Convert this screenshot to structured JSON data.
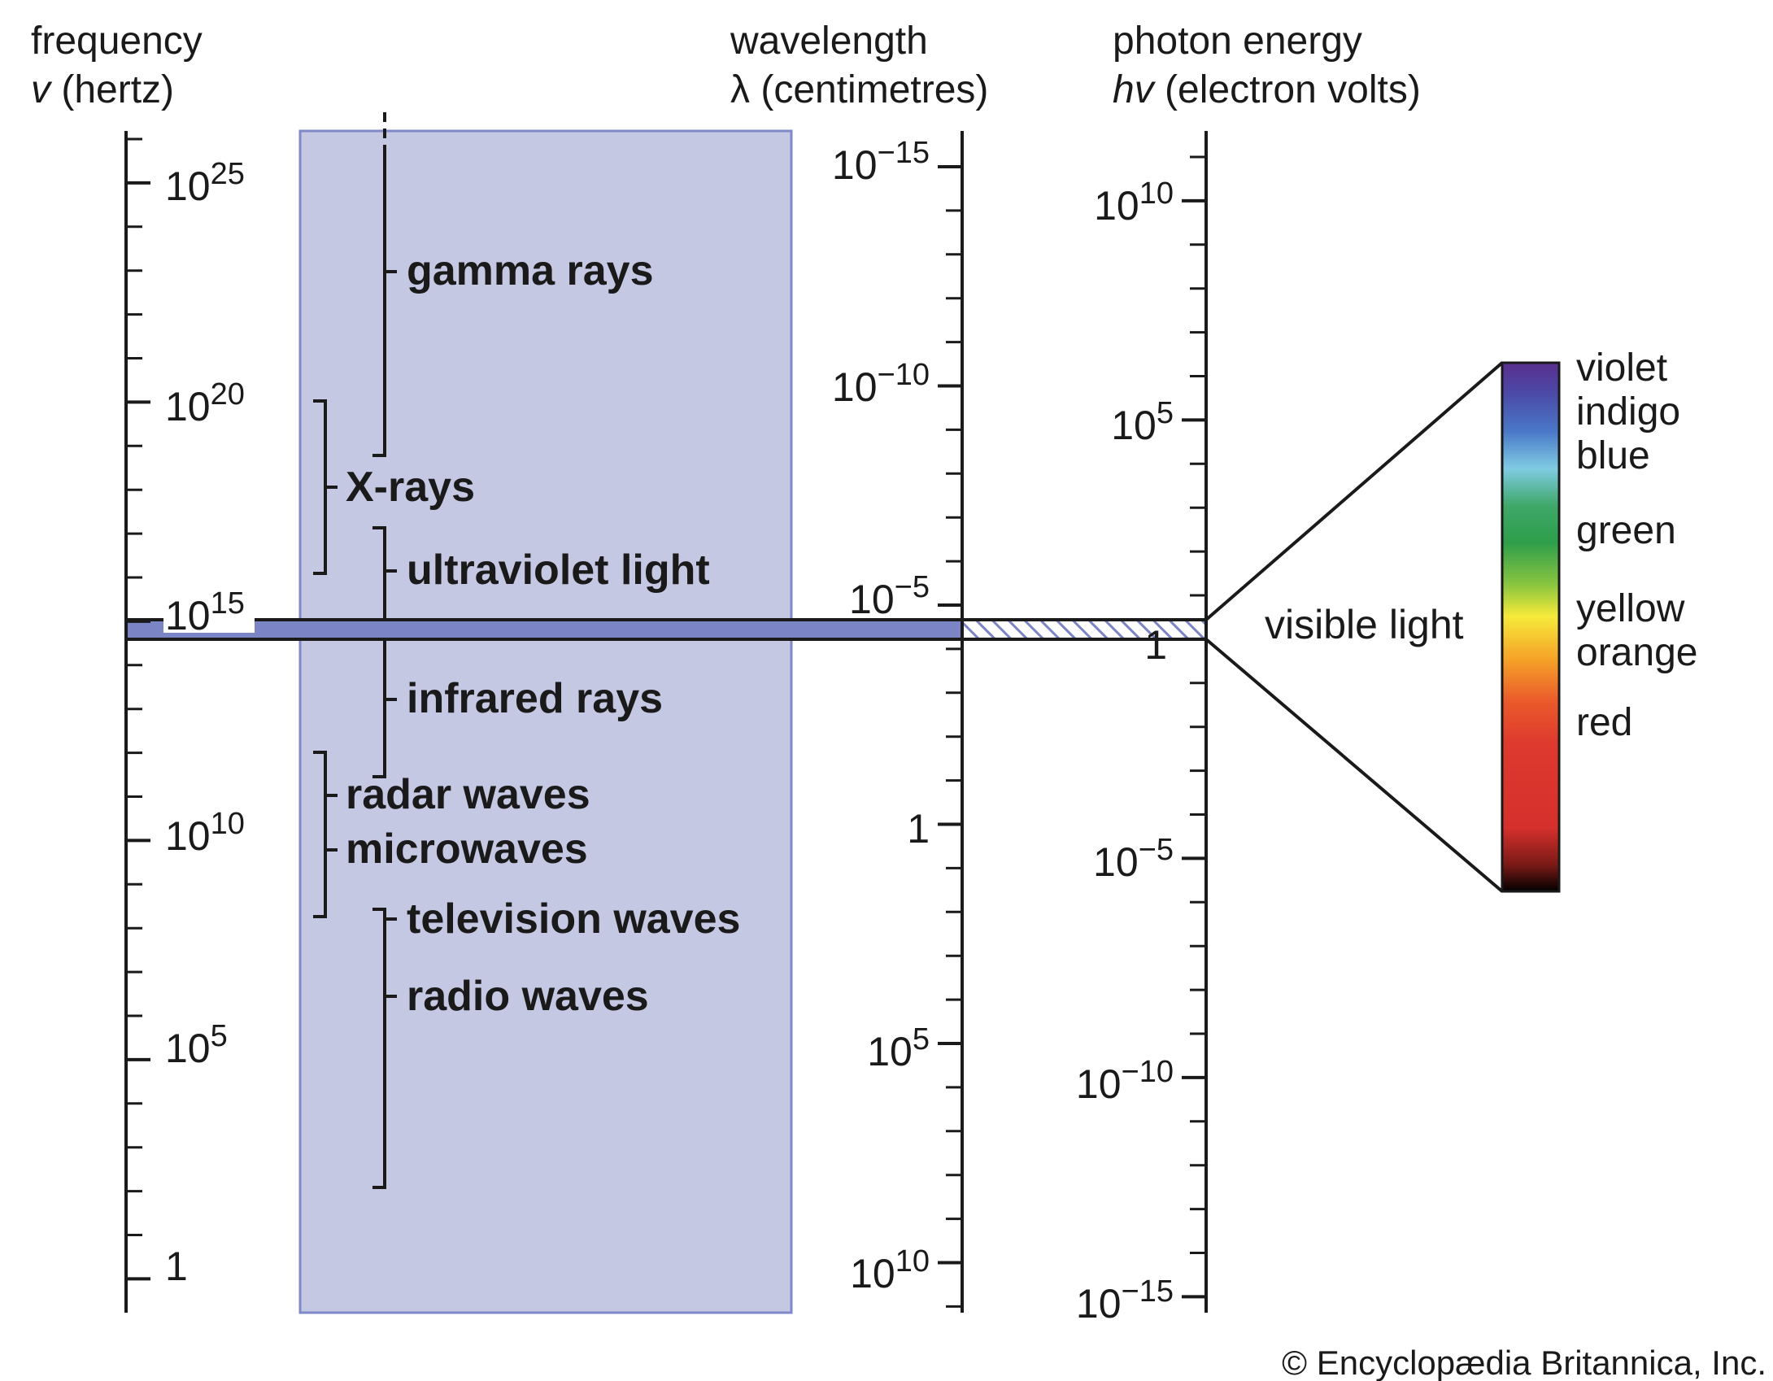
{
  "headers": {
    "frequency": {
      "line1": "frequency",
      "symbol": "v",
      "unit": " (hertz)"
    },
    "wavelength": {
      "line1": "wavelength",
      "symbol": "λ",
      "unit": " (centimetres)"
    },
    "energy": {
      "line1": "photon energy",
      "symbol": "hv",
      "unit": " (electron volts)"
    }
  },
  "frequency_labels": [
    {
      "base": "10",
      "exp": "25"
    },
    {
      "base": "10",
      "exp": "20"
    },
    {
      "base": "10",
      "exp": "15"
    },
    {
      "base": "10",
      "exp": "10"
    },
    {
      "base": "10",
      "exp": "5"
    },
    {
      "base": "1",
      "exp": ""
    }
  ],
  "wavelength_labels": [
    {
      "base": "10",
      "exp": "−15"
    },
    {
      "base": "10",
      "exp": "−10"
    },
    {
      "base": "10",
      "exp": "−5"
    },
    {
      "base": "1",
      "exp": ""
    },
    {
      "base": "10",
      "exp": "5"
    },
    {
      "base": "10",
      "exp": "10"
    }
  ],
  "energy_labels": [
    {
      "base": "10",
      "exp": "10"
    },
    {
      "base": "10",
      "exp": "5"
    },
    {
      "base": "1",
      "exp": ""
    },
    {
      "base": "10",
      "exp": "−5"
    },
    {
      "base": "10",
      "exp": "−10"
    },
    {
      "base": "10",
      "exp": "−15"
    }
  ],
  "bands": {
    "gamma": "gamma rays",
    "xrays": "X-rays",
    "ultraviolet": "ultraviolet light",
    "infrared": "infrared rays",
    "radar": "radar waves",
    "microwaves": "microwaves",
    "television": "television waves",
    "radio": "radio waves"
  },
  "visible_light": "visible light",
  "spectrum_colors": [
    "violet",
    "indigo",
    "blue",
    "green",
    "yellow",
    "orange",
    "red"
  ],
  "credit": "© Encyclopædia Britannica, Inc.",
  "colors": {
    "band_fill": "#c5c8e3",
    "band_edge": "#7f89c9",
    "visible_bar": "#7b84c4",
    "ink": "#1a1a1a"
  }
}
